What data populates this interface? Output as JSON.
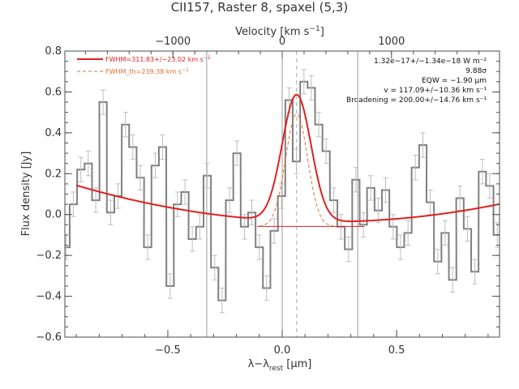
{
  "chart_data": {
    "type": "line",
    "title": "CII157, Raster 8, spaxel (5,3)",
    "xlabel": "λ−λ",
    "xlabel_sub": "rest",
    "xlabel_unit": " [μm]",
    "ylabel": "Flux density [Jy]",
    "top_xlabel": "Velocity [km s",
    "top_xlabel_sup": "−1",
    "top_xlabel_end": "]",
    "xlim": [
      -0.95,
      0.95
    ],
    "ylim": [
      -0.6,
      0.8
    ],
    "x_ticks": [
      {
        "value": -0.5,
        "label": "−0.5"
      },
      {
        "value": 0.0,
        "label": "0.0"
      },
      {
        "value": 0.5,
        "label": "0.5"
      }
    ],
    "y_ticks": [
      {
        "value": -0.6,
        "label": "−0.6"
      },
      {
        "value": -0.4,
        "label": "−0.4"
      },
      {
        "value": -0.2,
        "label": "−0.2"
      },
      {
        "value": 0.0,
        "label": "0.0"
      },
      {
        "value": 0.2,
        "label": "0.2"
      },
      {
        "value": 0.4,
        "label": "0.4"
      },
      {
        "value": 0.6,
        "label": "0.6"
      },
      {
        "value": 0.8,
        "label": "0.8"
      }
    ],
    "velocity_ticks": [
      {
        "value": -1000,
        "label": "−1000"
      },
      {
        "value": 0,
        "label": "0"
      },
      {
        "value": 1000,
        "label": "1000"
      }
    ],
    "velocity_per_micron": 2093,
    "vertical_lines": [
      -0.33,
      0.0,
      0.33
    ],
    "centroid_line": 0.063,
    "legend": [
      {
        "label": "FWHM=311.83+/−23.02 km s",
        "sup": "−1",
        "color": "#e02020",
        "style": "solid"
      },
      {
        "label": "FWHM_th=239.38 km s",
        "sup": "−1",
        "color": "#e07030",
        "style": "dashed"
      }
    ],
    "annotations": [
      "1.32e−17+/−1.34e−18 W m⁻²",
      "9.88σ",
      "EQW = −1.90 μm",
      "v = 117.09+/−10.36 km s⁻¹",
      "Broadening = 200.00+/−14.76 km s⁻¹"
    ],
    "series": [
      {
        "name": "Spectrum",
        "color": "#808080",
        "style": "histogram",
        "bin_width": 0.0325,
        "x": [
          -0.945,
          -0.913,
          -0.88,
          -0.848,
          -0.815,
          -0.783,
          -0.75,
          -0.718,
          -0.685,
          -0.653,
          -0.62,
          -0.588,
          -0.555,
          -0.523,
          -0.49,
          -0.458,
          -0.425,
          -0.393,
          -0.36,
          -0.328,
          -0.295,
          -0.263,
          -0.23,
          -0.198,
          -0.165,
          -0.133,
          -0.1,
          -0.068,
          -0.035,
          -0.003,
          0.03,
          0.062,
          0.095,
          0.127,
          0.16,
          0.192,
          0.225,
          0.257,
          0.29,
          0.322,
          0.355,
          0.387,
          0.42,
          0.452,
          0.485,
          0.517,
          0.55,
          0.582,
          0.615,
          0.647,
          0.68,
          0.712,
          0.745,
          0.777,
          0.81,
          0.842,
          0.875,
          0.907,
          0.94
        ],
        "y": [
          -0.16,
          0.05,
          0.22,
          0.25,
          0.07,
          0.55,
          0.01,
          0.09,
          0.44,
          0.33,
          0.18,
          -0.16,
          0.24,
          0.33,
          -0.35,
          0.05,
          0.11,
          -0.12,
          -0.06,
          0.19,
          -0.26,
          -0.42,
          0.07,
          0.3,
          -0.06,
          0.01,
          -0.16,
          -0.36,
          -0.08,
          0.09,
          0.56,
          0.26,
          0.65,
          0.62,
          0.44,
          0.31,
          0.07,
          -0.06,
          -0.17,
          0.17,
          -0.05,
          0.13,
          0.02,
          0.12,
          -0.06,
          -0.16,
          -0.09,
          0.23,
          0.34,
          0.06,
          -0.23,
          -0.09,
          -0.32,
          0.08,
          -0.07,
          -0.28,
          0.21,
          0.14,
          -0.1
        ],
        "err": [
          0.06,
          0.06,
          0.06,
          0.06,
          0.06,
          0.06,
          0.06,
          0.06,
          0.06,
          0.06,
          0.06,
          0.06,
          0.06,
          0.06,
          0.06,
          0.06,
          0.06,
          0.06,
          0.06,
          0.06,
          0.06,
          0.06,
          0.06,
          0.06,
          0.06,
          0.06,
          0.06,
          0.06,
          0.06,
          0.06,
          0.06,
          0.06,
          0.06,
          0.06,
          0.06,
          0.06,
          0.06,
          0.06,
          0.06,
          0.06,
          0.06,
          0.06,
          0.06,
          0.06,
          0.06,
          0.06,
          0.06,
          0.06,
          0.06,
          0.06,
          0.06,
          0.06,
          0.06,
          0.06,
          0.06,
          0.06,
          0.06,
          0.06,
          0.06
        ]
      },
      {
        "name": "Fit",
        "color": "#e02020",
        "style": "solid",
        "model": {
          "center": 0.063,
          "sigma": 0.063,
          "amplitude": 0.62,
          "baseline_quadratic": [
            0.15,
            -0.057,
            -0.03
          ]
        }
      },
      {
        "name": "Continuum",
        "color": "#e02020",
        "style": "thin",
        "x": [
          -0.11,
          0.36
        ],
        "y": [
          -0.058,
          -0.058
        ]
      },
      {
        "name": "Thermal profile",
        "color": "#e07030",
        "style": "dashed",
        "model": {
          "center": 0.063,
          "sigma": 0.048,
          "amplitude": 0.55,
          "baseline": -0.058,
          "x_range": [
            -0.1,
            0.23
          ]
        }
      }
    ]
  }
}
